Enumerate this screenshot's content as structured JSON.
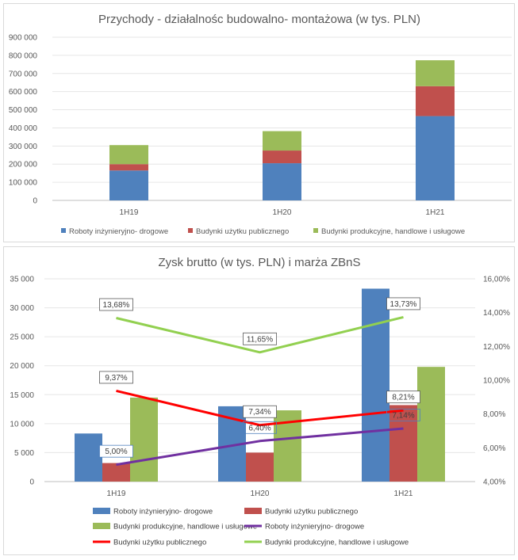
{
  "chart_data": [
    {
      "type": "bar",
      "stacked": true,
      "title": "Przychody - działalnośc budowalno- montażowa (w tys. PLN)",
      "categories": [
        "1H19",
        "1H20",
        "1H21"
      ],
      "ylim": [
        0,
        900000
      ],
      "yticks": [
        "0",
        "100 000",
        "200 000",
        "300 000",
        "400 000",
        "500 000",
        "600 000",
        "700 000",
        "800 000",
        "900 000"
      ],
      "grid": true,
      "legend": "bottom",
      "series": [
        {
          "name": "Roboty inżynieryjno- drogowe",
          "color": "#4f81bd",
          "values": [
            165000,
            205000,
            465000
          ]
        },
        {
          "name": "Budynki użytku publicznego",
          "color": "#c0504d",
          "values": [
            35000,
            70000,
            165000
          ]
        },
        {
          "name": "Budynki produkcyjne, handlowe i usługowe",
          "color": "#9bbb59",
          "values": [
            105000,
            107000,
            143000
          ]
        }
      ]
    },
    {
      "type": "bar+line",
      "title": "Zysk brutto (w tys. PLN) i marża ZBnS",
      "categories": [
        "1H19",
        "1H20",
        "1H21"
      ],
      "ylim": [
        0,
        35000
      ],
      "yticks": [
        "0",
        "5 000",
        "10 000",
        "15 000",
        "20 000",
        "25 000",
        "30 000",
        "35 000"
      ],
      "y2lim": [
        0.04,
        0.16
      ],
      "y2ticks": [
        "4,00%",
        "6,00%",
        "8,00%",
        "10,00%",
        "12,00%",
        "14,00%",
        "16,00%"
      ],
      "grid": true,
      "legend": "bottom",
      "bar_series": [
        {
          "name": "Roboty inżynieryjno- drogowe",
          "color": "#4f81bd",
          "values": [
            8300,
            13000,
            33300
          ]
        },
        {
          "name": "Budynki użytku publicznego",
          "color": "#c0504d",
          "values": [
            3200,
            5000,
            13200
          ]
        },
        {
          "name": "Budynki produkcyjne, handlowe i usługowe",
          "color": "#9bbb59",
          "values": [
            14500,
            12300,
            19800
          ]
        }
      ],
      "line_series": [
        {
          "name": "Roboty inżynieryjno- drogowe",
          "color": "#7030a0",
          "values": [
            0.05,
            0.064,
            0.0714
          ],
          "labels": [
            "5,00%",
            "6,40%",
            "7,14%"
          ]
        },
        {
          "name": "Budynki użytku publicznego",
          "color": "#ff0000",
          "values": [
            0.0937,
            0.0734,
            0.0821
          ],
          "labels": [
            "9,37%",
            "7,34%",
            "8,21%"
          ]
        },
        {
          "name": "Budynki produkcyjne, handlowe i usługowe",
          "color": "#92d050",
          "values": [
            0.1368,
            0.1165,
            0.1373
          ],
          "labels": [
            "13,68%",
            "11,65%",
            "13,73%"
          ]
        }
      ]
    }
  ]
}
